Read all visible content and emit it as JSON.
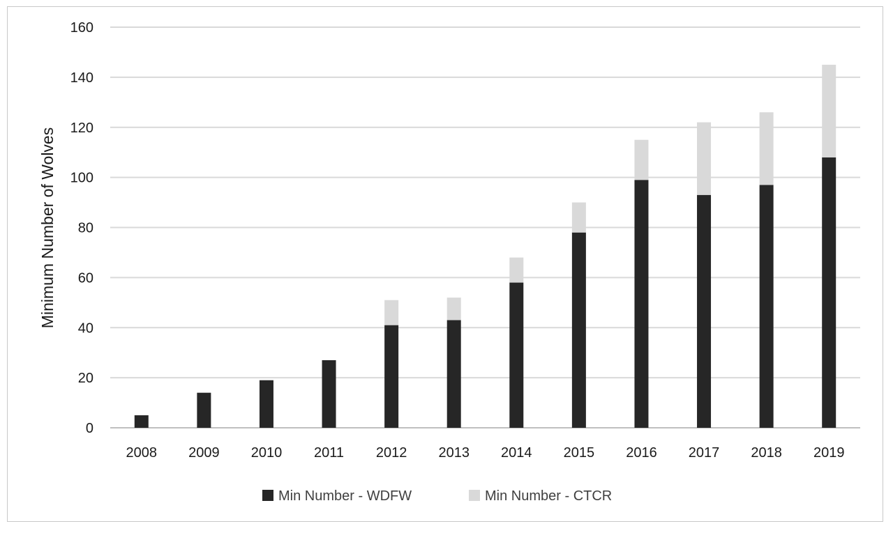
{
  "chart_data": {
    "type": "bar",
    "stacked": true,
    "title": "",
    "xlabel": "",
    "ylabel": "Minimum Number of Wolves",
    "ylim": [
      0,
      160
    ],
    "yticks": [
      0,
      20,
      40,
      60,
      80,
      100,
      120,
      140,
      160
    ],
    "grid": true,
    "legend_position": "bottom",
    "categories": [
      "2008",
      "2009",
      "2010",
      "2011",
      "2012",
      "2013",
      "2014",
      "2015",
      "2016",
      "2017",
      "2018",
      "2019"
    ],
    "series": [
      {
        "name": "Min Number - WDFW",
        "color": "#262626",
        "values": [
          5,
          14,
          19,
          27,
          41,
          43,
          58,
          78,
          99,
          93,
          97,
          108
        ]
      },
      {
        "name": "Min Number - CTCR",
        "color": "#d9d9d9",
        "values": [
          0,
          0,
          0,
          0,
          10,
          9,
          10,
          12,
          16,
          29,
          29,
          37
        ]
      }
    ]
  }
}
